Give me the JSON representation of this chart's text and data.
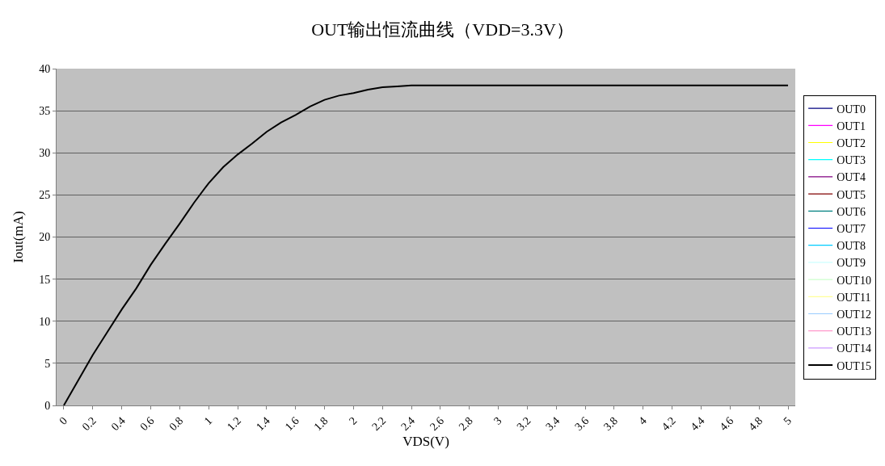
{
  "chart_data": {
    "type": "line",
    "title": "OUT输出恒流曲线（VDD=3.3V）",
    "xlabel": "VDS(V)",
    "ylabel": "Iout(mA)",
    "x": [
      0,
      0.1,
      0.2,
      0.3,
      0.4,
      0.5,
      0.6,
      0.7,
      0.8,
      0.9,
      1,
      1.1,
      1.2,
      1.3,
      1.4,
      1.5,
      1.6,
      1.7,
      1.8,
      1.9,
      2,
      2.1,
      2.2,
      2.3,
      2.4,
      2.5,
      2.6,
      2.7,
      2.8,
      2.9,
      3,
      3.1,
      3.2,
      3.3,
      3.4,
      3.5,
      3.6,
      3.7,
      3.8,
      3.9,
      4,
      4.1,
      4.2,
      4.3,
      4.4,
      4.5,
      4.6,
      4.7,
      4.8,
      4.9,
      5
    ],
    "xlim": [
      -0.05,
      5.05
    ],
    "xticks": [
      0,
      0.2,
      0.4,
      0.6,
      0.8,
      1,
      1.2,
      1.4,
      1.6,
      1.8,
      2,
      2.2,
      2.4,
      2.6,
      2.8,
      3,
      3.2,
      3.4,
      3.6,
      3.8,
      4,
      4.2,
      4.4,
      4.6,
      4.8,
      5
    ],
    "ylim": [
      0,
      40
    ],
    "yticks": [
      0,
      5,
      10,
      15,
      20,
      25,
      30,
      35,
      40
    ],
    "grid": "y",
    "legend": "right",
    "marker": "none",
    "line_style": "solid",
    "series": [
      {
        "name": "OUT0",
        "color": "#000080",
        "values": [
          null,
          null,
          null,
          null,
          null,
          null,
          null,
          null,
          null,
          null,
          null,
          null,
          null,
          null,
          null,
          null,
          null,
          null,
          null,
          null,
          null,
          null,
          null,
          null,
          null,
          null,
          null,
          null,
          null,
          null,
          null,
          null,
          null,
          null,
          null,
          null,
          null,
          null,
          null,
          null,
          null,
          null,
          null,
          null,
          null,
          null,
          null,
          null,
          null,
          null,
          null
        ]
      },
      {
        "name": "OUT1",
        "color": "#ff00ff",
        "values": [
          null,
          null,
          null,
          null,
          null,
          null,
          null,
          null,
          null,
          null,
          null,
          null,
          null,
          null,
          null,
          null,
          null,
          null,
          null,
          null,
          null,
          null,
          null,
          null,
          null,
          null,
          null,
          null,
          null,
          null,
          null,
          null,
          null,
          null,
          null,
          null,
          null,
          null,
          null,
          null,
          null,
          null,
          null,
          null,
          null,
          null,
          null,
          null,
          null,
          null,
          null
        ]
      },
      {
        "name": "OUT2",
        "color": "#ffff00",
        "values": [
          null,
          null,
          null,
          null,
          null,
          null,
          null,
          null,
          null,
          null,
          null,
          null,
          null,
          null,
          null,
          null,
          null,
          null,
          null,
          null,
          null,
          null,
          null,
          null,
          null,
          null,
          null,
          null,
          null,
          null,
          null,
          null,
          null,
          null,
          null,
          null,
          null,
          null,
          null,
          null,
          null,
          null,
          null,
          null,
          null,
          null,
          null,
          null,
          null,
          null,
          null
        ]
      },
      {
        "name": "OUT3",
        "color": "#00ffff",
        "values": [
          null,
          null,
          null,
          null,
          null,
          null,
          null,
          null,
          null,
          null,
          null,
          null,
          null,
          null,
          null,
          null,
          null,
          null,
          null,
          null,
          null,
          null,
          null,
          null,
          null,
          null,
          null,
          null,
          null,
          null,
          null,
          null,
          null,
          null,
          null,
          null,
          null,
          null,
          null,
          null,
          null,
          null,
          null,
          null,
          null,
          null,
          null,
          null,
          null,
          null,
          null
        ]
      },
      {
        "name": "OUT4",
        "color": "#800080",
        "values": [
          null,
          null,
          null,
          null,
          null,
          null,
          null,
          null,
          null,
          null,
          null,
          null,
          null,
          null,
          null,
          null,
          null,
          null,
          null,
          null,
          null,
          null,
          null,
          null,
          null,
          null,
          null,
          null,
          null,
          null,
          null,
          null,
          null,
          null,
          null,
          null,
          null,
          null,
          null,
          null,
          null,
          null,
          null,
          null,
          null,
          null,
          null,
          null,
          null,
          null,
          null
        ]
      },
      {
        "name": "OUT5",
        "color": "#800000",
        "values": [
          null,
          null,
          null,
          null,
          null,
          null,
          null,
          null,
          null,
          null,
          null,
          null,
          null,
          null,
          null,
          null,
          null,
          null,
          null,
          null,
          null,
          null,
          null,
          null,
          null,
          null,
          null,
          null,
          null,
          null,
          null,
          null,
          null,
          null,
          null,
          null,
          null,
          null,
          null,
          null,
          null,
          null,
          null,
          null,
          null,
          null,
          null,
          null,
          null,
          null,
          null
        ]
      },
      {
        "name": "OUT6",
        "color": "#008080",
        "values": [
          null,
          null,
          null,
          null,
          null,
          null,
          null,
          null,
          null,
          null,
          null,
          null,
          null,
          null,
          null,
          null,
          null,
          null,
          null,
          null,
          null,
          null,
          null,
          null,
          null,
          null,
          null,
          null,
          null,
          null,
          null,
          null,
          null,
          null,
          null,
          null,
          null,
          null,
          null,
          null,
          null,
          null,
          null,
          null,
          null,
          null,
          null,
          null,
          null,
          null,
          null
        ]
      },
      {
        "name": "OUT7",
        "color": "#0000ff",
        "values": [
          null,
          null,
          null,
          null,
          null,
          null,
          null,
          null,
          null,
          null,
          null,
          null,
          null,
          null,
          null,
          null,
          null,
          null,
          null,
          null,
          null,
          null,
          null,
          null,
          null,
          null,
          null,
          null,
          null,
          null,
          null,
          null,
          null,
          null,
          null,
          null,
          null,
          null,
          null,
          null,
          null,
          null,
          null,
          null,
          null,
          null,
          null,
          null,
          null,
          null,
          null
        ]
      },
      {
        "name": "OUT8",
        "color": "#00ccff",
        "values": [
          null,
          null,
          null,
          null,
          null,
          null,
          null,
          null,
          null,
          null,
          null,
          null,
          null,
          null,
          null,
          null,
          null,
          null,
          null,
          null,
          null,
          null,
          null,
          null,
          null,
          null,
          null,
          null,
          null,
          null,
          null,
          null,
          null,
          null,
          null,
          null,
          null,
          null,
          null,
          null,
          null,
          null,
          null,
          null,
          null,
          null,
          null,
          null,
          null,
          null,
          null
        ]
      },
      {
        "name": "OUT9",
        "color": "#ccffff",
        "values": [
          null,
          null,
          null,
          null,
          null,
          null,
          null,
          null,
          null,
          null,
          null,
          null,
          null,
          null,
          null,
          null,
          null,
          null,
          null,
          null,
          null,
          null,
          null,
          null,
          null,
          null,
          null,
          null,
          null,
          null,
          null,
          null,
          null,
          null,
          null,
          null,
          null,
          null,
          null,
          null,
          null,
          null,
          null,
          null,
          null,
          null,
          null,
          null,
          null,
          null,
          null
        ]
      },
      {
        "name": "OUT10",
        "color": "#ccffcc",
        "values": [
          null,
          null,
          null,
          null,
          null,
          null,
          null,
          null,
          null,
          null,
          null,
          null,
          null,
          null,
          null,
          null,
          null,
          null,
          null,
          null,
          null,
          null,
          null,
          null,
          null,
          null,
          null,
          null,
          null,
          null,
          null,
          null,
          null,
          null,
          null,
          null,
          null,
          null,
          null,
          null,
          null,
          null,
          null,
          null,
          null,
          null,
          null,
          null,
          null,
          null,
          null
        ]
      },
      {
        "name": "OUT11",
        "color": "#ffff99",
        "values": [
          null,
          null,
          null,
          null,
          null,
          null,
          null,
          null,
          null,
          null,
          null,
          null,
          null,
          null,
          null,
          null,
          null,
          null,
          null,
          null,
          null,
          null,
          null,
          null,
          null,
          null,
          null,
          null,
          null,
          null,
          null,
          null,
          null,
          null,
          null,
          null,
          null,
          null,
          null,
          null,
          null,
          null,
          null,
          null,
          null,
          null,
          null,
          null,
          null,
          null,
          null
        ]
      },
      {
        "name": "OUT12",
        "color": "#99ccff",
        "values": [
          null,
          null,
          null,
          null,
          null,
          null,
          null,
          null,
          null,
          null,
          null,
          null,
          null,
          null,
          null,
          null,
          null,
          null,
          null,
          null,
          null,
          null,
          null,
          null,
          null,
          null,
          null,
          null,
          null,
          null,
          null,
          null,
          null,
          null,
          null,
          null,
          null,
          null,
          null,
          null,
          null,
          null,
          null,
          null,
          null,
          null,
          null,
          null,
          null,
          null,
          null
        ]
      },
      {
        "name": "OUT13",
        "color": "#ff99cc",
        "values": [
          null,
          null,
          null,
          null,
          null,
          null,
          null,
          null,
          null,
          null,
          null,
          null,
          null,
          null,
          null,
          null,
          null,
          null,
          null,
          null,
          null,
          null,
          null,
          null,
          null,
          null,
          null,
          null,
          null,
          null,
          null,
          null,
          null,
          null,
          null,
          null,
          null,
          null,
          null,
          null,
          null,
          null,
          null,
          null,
          null,
          null,
          null,
          null,
          null,
          null,
          null
        ]
      },
      {
        "name": "OUT14",
        "color": "#cc99ff",
        "values": [
          null,
          null,
          null,
          null,
          null,
          null,
          null,
          null,
          null,
          null,
          null,
          null,
          null,
          null,
          null,
          null,
          null,
          null,
          null,
          null,
          null,
          null,
          null,
          null,
          null,
          null,
          null,
          null,
          null,
          null,
          null,
          null,
          null,
          null,
          null,
          null,
          null,
          null,
          null,
          null,
          null,
          null,
          null,
          null,
          null,
          null,
          null,
          null,
          null,
          null,
          null
        ]
      },
      {
        "name": "OUT15",
        "color": "#000000",
        "values": [
          0,
          3,
          6,
          8.7,
          11.4,
          13.9,
          16.7,
          19.2,
          21.6,
          24.1,
          26.4,
          28.3,
          29.8,
          31.1,
          32.5,
          33.6,
          34.5,
          35.5,
          36.3,
          36.8,
          37.1,
          37.5,
          37.8,
          37.9,
          38,
          38,
          38,
          38,
          38,
          38,
          38,
          38,
          38,
          38,
          38,
          38,
          38,
          38,
          38,
          38,
          38,
          38,
          38,
          38,
          38,
          38,
          38,
          38,
          38,
          38,
          38
        ]
      }
    ]
  }
}
